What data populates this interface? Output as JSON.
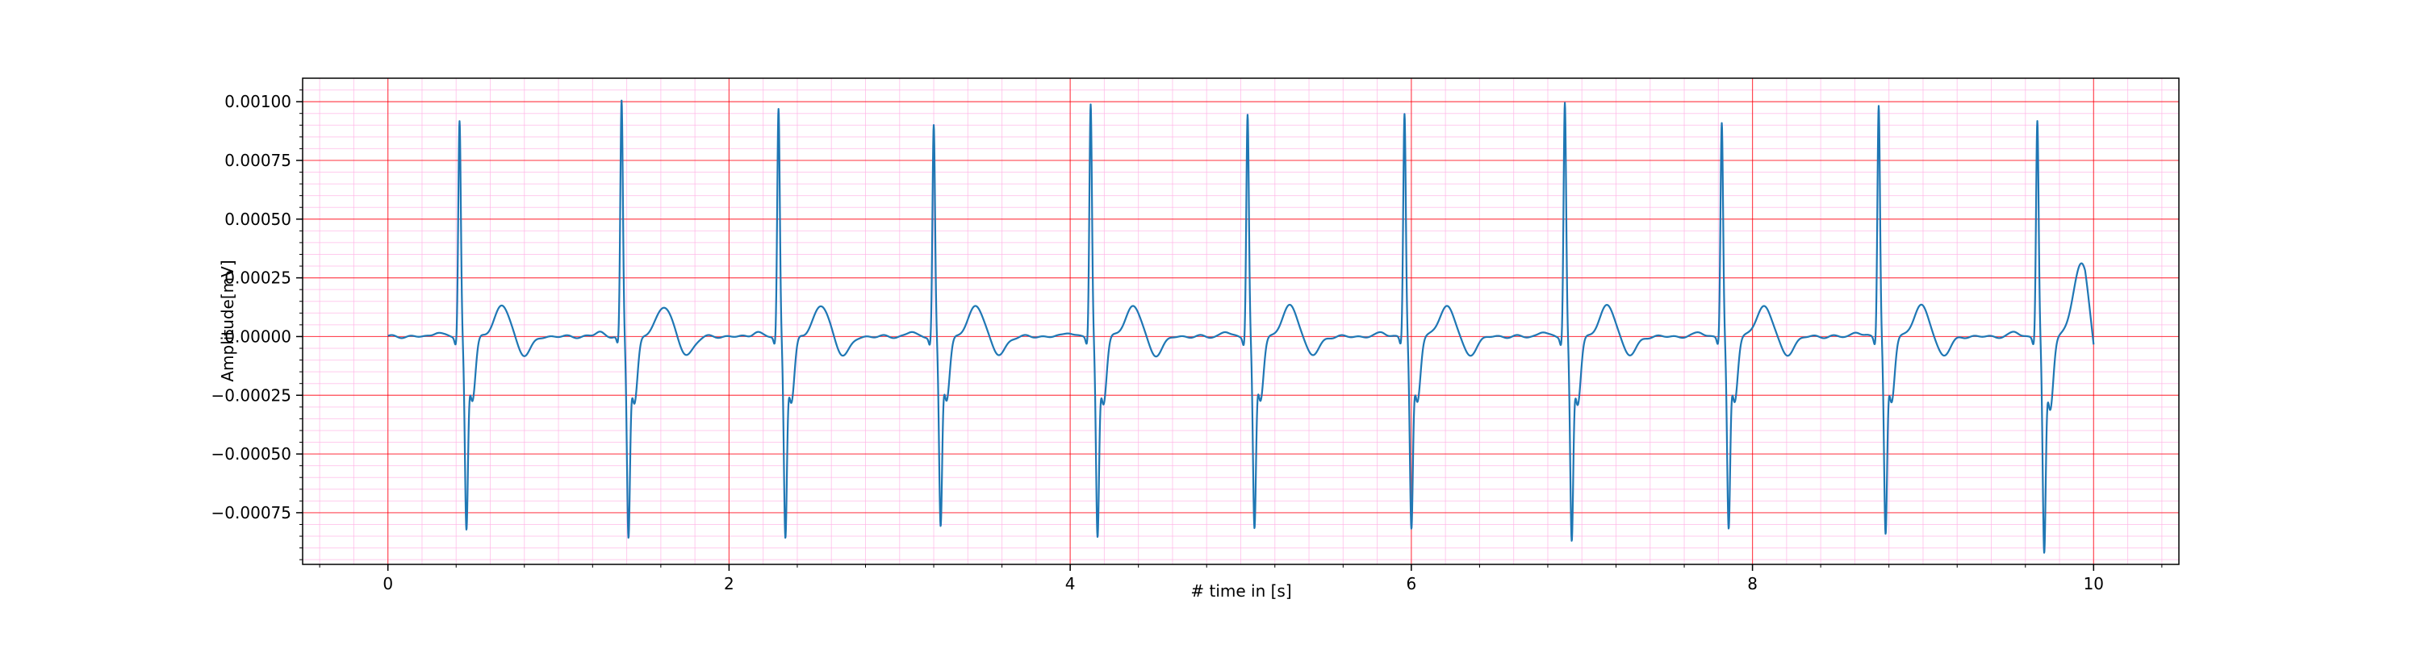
{
  "chart_data": {
    "type": "line",
    "title": "",
    "xlabel": "# time in [s]",
    "ylabel": "Amplitude[mV]",
    "xlim": [
      -0.5,
      10.5
    ],
    "ylim": [
      -0.00097,
      0.0011
    ],
    "xticks": [
      0,
      2,
      4,
      6,
      8,
      10
    ],
    "xtick_labels": [
      "0",
      "2",
      "4",
      "6",
      "8",
      "10"
    ],
    "yticks": [
      0.001,
      0.00075,
      0.0005,
      0.00025,
      0.0,
      -0.00025,
      -0.0005,
      -0.00075
    ],
    "ytick_labels": [
      "0.00100",
      "0.00075",
      "0.00050",
      "0.00025",
      "0.00000",
      "−0.00025",
      "−0.00050",
      "−0.00075"
    ],
    "grid": {
      "major": true,
      "minor": true,
      "major_color": "#ff0000",
      "minor_color": "#ffb6e6"
    },
    "series": [
      {
        "name": "",
        "color": "#1f77b4",
        "beats": [
          {
            "t": 0.42,
            "peak": 0.00092,
            "trough": -0.00078
          },
          {
            "t": 1.37,
            "peak": 0.001,
            "trough": -0.00081
          },
          {
            "t": 2.29,
            "peak": 0.00097,
            "trough": -0.00081
          },
          {
            "t": 3.2,
            "peak": 0.0009,
            "trough": -0.00077
          },
          {
            "t": 4.12,
            "peak": 0.00099,
            "trough": -0.00081
          },
          {
            "t": 5.04,
            "peak": 0.00095,
            "trough": -0.00078
          },
          {
            "t": 5.96,
            "peak": 0.00095,
            "trough": -0.00078
          },
          {
            "t": 6.9,
            "peak": 0.001,
            "trough": -0.00083
          },
          {
            "t": 7.82,
            "peak": 0.00091,
            "trough": -0.00078
          },
          {
            "t": 8.74,
            "peak": 0.00099,
            "trough": -0.0008
          },
          {
            "t": 9.67,
            "peak": 0.00092,
            "trough": -0.00088
          }
        ],
        "t_wave_amplitude": 0.00013,
        "t_wave_delay": 0.25,
        "x_start": 0.0,
        "x_end": 10.0,
        "end_value": 5e-05
      }
    ]
  }
}
